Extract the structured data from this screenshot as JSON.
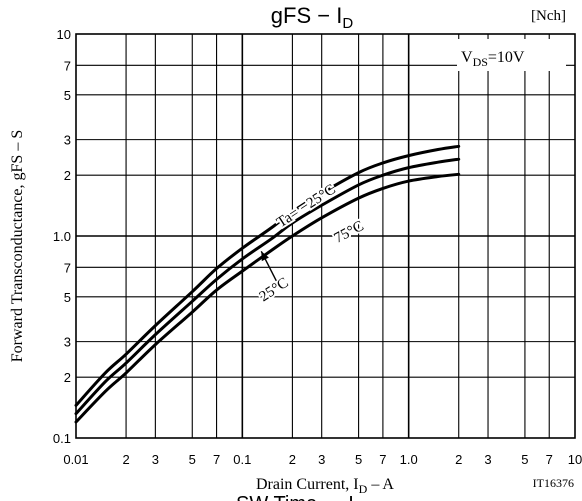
{
  "chart_data": {
    "type": "line",
    "title_main": "gFS",
    "title_sep": " − ",
    "title_sym": "I",
    "title_sub": "D",
    "channel_tag": "[Nch]",
    "condition_main": "V",
    "condition_sub": "DS",
    "condition_value": "=10V",
    "xlabel_prefix": "Drain Current, I",
    "xlabel_sub": "D",
    "xlabel_suffix": "  –  A",
    "ylabel": "Forward Transconductance, gFS  –  S",
    "figure_id": "IT16376",
    "footer_text": "SW Time — I",
    "footer_sub": "D",
    "x_scale": "log",
    "y_scale": "log",
    "xlim": [
      0.01,
      10
    ],
    "ylim": [
      0.1,
      10
    ],
    "grid": true,
    "x_major_ticks": [
      {
        "v": 0.01,
        "label": "0.01"
      },
      {
        "v": 0.1,
        "label": "0.1"
      },
      {
        "v": 1,
        "label": "1.0"
      },
      {
        "v": 10,
        "label": "10"
      }
    ],
    "x_minor_ticks": [
      {
        "v": 0.02,
        "label": "2"
      },
      {
        "v": 0.03,
        "label": "3"
      },
      {
        "v": 0.05,
        "label": "5"
      },
      {
        "v": 0.07,
        "label": "7"
      },
      {
        "v": 0.2,
        "label": "2"
      },
      {
        "v": 0.3,
        "label": "3"
      },
      {
        "v": 0.5,
        "label": "5"
      },
      {
        "v": 0.7,
        "label": "7"
      },
      {
        "v": 2,
        "label": "2"
      },
      {
        "v": 3,
        "label": "3"
      },
      {
        "v": 5,
        "label": "5"
      },
      {
        "v": 7,
        "label": "7"
      }
    ],
    "y_major_ticks": [
      {
        "v": 0.1,
        "label": "0.1"
      },
      {
        "v": 1,
        "label": "1.0"
      },
      {
        "v": 10,
        "label": "10"
      }
    ],
    "y_minor_ticks": [
      {
        "v": 0.2,
        "label": "2"
      },
      {
        "v": 0.3,
        "label": "3"
      },
      {
        "v": 0.5,
        "label": "5"
      },
      {
        "v": 0.7,
        "label": "7"
      },
      {
        "v": 2,
        "label": "2"
      },
      {
        "v": 3,
        "label": "3"
      },
      {
        "v": 5,
        "label": "5"
      },
      {
        "v": 7,
        "label": "7"
      }
    ],
    "series": [
      {
        "name": "Ta= −25°C",
        "x": [
          0.01,
          0.015,
          0.02,
          0.03,
          0.05,
          0.07,
          0.1,
          0.15,
          0.2,
          0.3,
          0.5,
          0.7,
          1.0,
          1.5,
          2.0
        ],
        "y": [
          0.145,
          0.21,
          0.26,
          0.36,
          0.53,
          0.69,
          0.87,
          1.1,
          1.32,
          1.63,
          2.06,
          2.3,
          2.5,
          2.68,
          2.78
        ]
      },
      {
        "name": "25°C",
        "x": [
          0.01,
          0.015,
          0.02,
          0.03,
          0.05,
          0.07,
          0.1,
          0.15,
          0.2,
          0.3,
          0.5,
          0.7,
          1.0,
          1.5,
          2.0
        ],
        "y": [
          0.132,
          0.19,
          0.235,
          0.325,
          0.475,
          0.61,
          0.77,
          0.97,
          1.16,
          1.42,
          1.79,
          2.0,
          2.18,
          2.32,
          2.4
        ]
      },
      {
        "name": "75°C",
        "x": [
          0.01,
          0.015,
          0.02,
          0.03,
          0.05,
          0.07,
          0.1,
          0.15,
          0.2,
          0.3,
          0.5,
          0.7,
          1.0,
          1.5,
          2.0
        ],
        "y": [
          0.12,
          0.17,
          0.21,
          0.29,
          0.42,
          0.54,
          0.67,
          0.85,
          1.0,
          1.23,
          1.54,
          1.72,
          1.87,
          1.97,
          2.02
        ]
      }
    ],
    "curve_labels": [
      {
        "text": "Ta= −25°C",
        "x": 0.25,
        "y": 1.35,
        "angle": -33
      },
      {
        "text": "75°C",
        "x": 0.45,
        "y": 1.0,
        "angle": -28
      },
      {
        "text": "25°C",
        "x": 0.16,
        "y": 0.52,
        "angle": -33
      }
    ],
    "arrow": {
      "from": {
        "x": 0.16,
        "y": 0.6
      },
      "to": {
        "x": 0.13,
        "y": 0.84
      }
    }
  }
}
